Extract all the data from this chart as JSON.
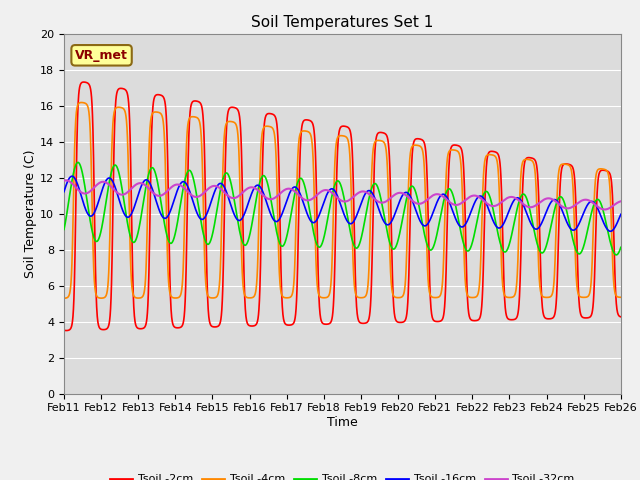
{
  "title": "Soil Temperatures Set 1",
  "xlabel": "Time",
  "ylabel": "Soil Temperature (C)",
  "ylim": [
    0,
    20
  ],
  "xlim": [
    0,
    15
  ],
  "bg_color": "#dcdcdc",
  "fig_color": "#f0f0f0",
  "grid_color": "#ffffff",
  "annotation_text": "VR_met",
  "annotation_bg": "#ffff99",
  "annotation_border": "#8B6914",
  "legend_labels": [
    "Tsoil -2cm",
    "Tsoil -4cm",
    "Tsoil -8cm",
    "Tsoil -16cm",
    "Tsoil -32cm"
  ],
  "line_colors": [
    "#ff0000",
    "#ff8800",
    "#00dd00",
    "#0000ff",
    "#cc44cc"
  ],
  "line_widths": [
    1.2,
    1.2,
    1.2,
    1.2,
    1.5
  ],
  "xtick_labels": [
    "Feb 11",
    "Feb 12",
    "Feb 13",
    "Feb 14",
    "Feb 15",
    "Feb 16",
    "Feb 17",
    "Feb 18",
    "Feb 19",
    "Feb 20",
    "Feb 21",
    "Feb 22",
    "Feb 23",
    "Feb 24",
    "Feb 25",
    "Feb 26"
  ],
  "xtick_positions": [
    0,
    1,
    2,
    3,
    4,
    5,
    6,
    7,
    8,
    9,
    10,
    11,
    12,
    13,
    14,
    15
  ],
  "ytick_positions": [
    0,
    2,
    4,
    6,
    8,
    10,
    12,
    14,
    16,
    18,
    20
  ],
  "title_fontsize": 11,
  "axis_fontsize": 9,
  "tick_fontsize": 8
}
